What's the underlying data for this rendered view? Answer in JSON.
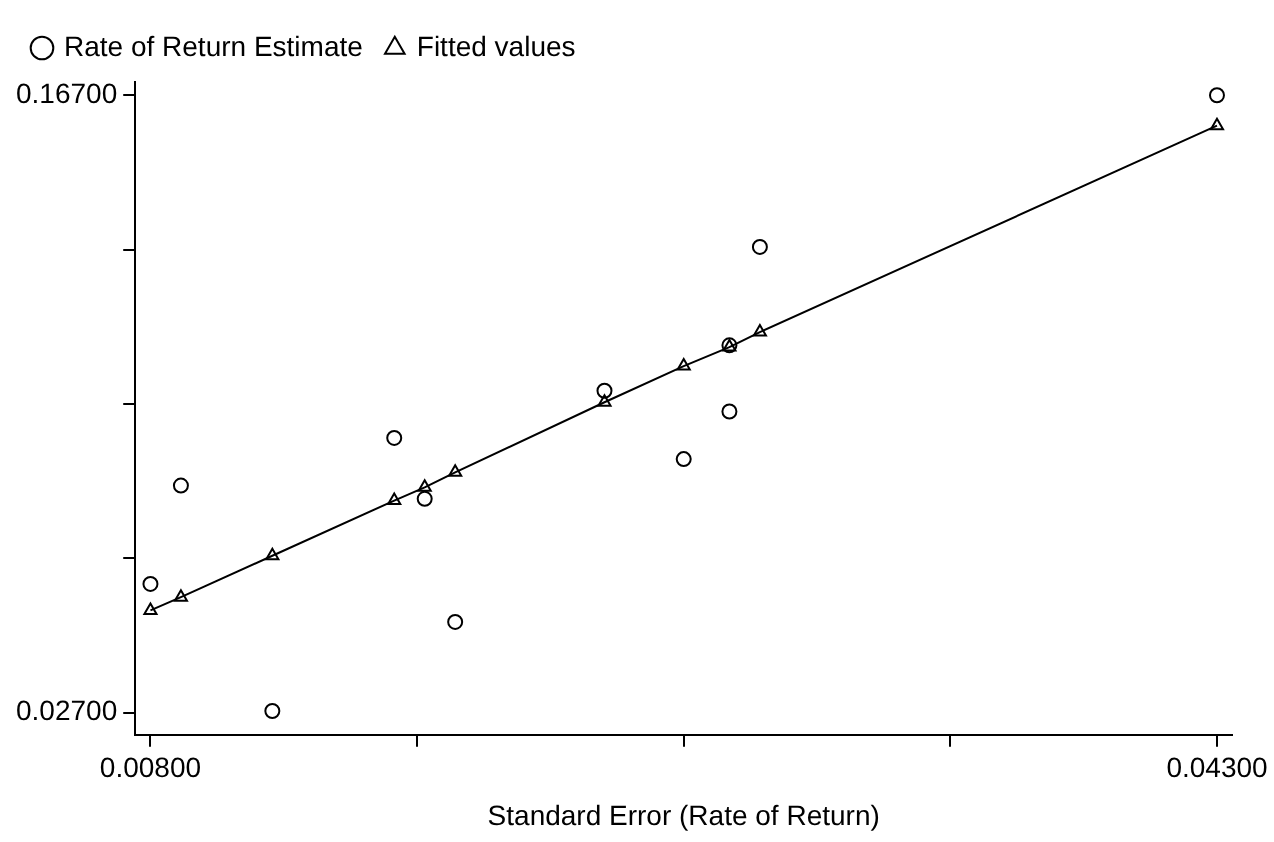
{
  "chart_data": {
    "type": "scatter",
    "xlabel": "Standard Error (Rate of Return)",
    "xlim": [
      0.0075,
      0.0435
    ],
    "ylim": [
      0.022,
      0.17
    ],
    "xticks": [
      {
        "value": 0.008,
        "label": "0.00800"
      },
      {
        "value": 0.01675,
        "label": null
      },
      {
        "value": 0.0255,
        "label": null
      },
      {
        "value": 0.03425,
        "label": null
      },
      {
        "value": 0.043,
        "label": "0.04300"
      }
    ],
    "yticks": [
      {
        "value": 0.027,
        "label": "0.02700"
      },
      {
        "value": 0.062,
        "label": null
      },
      {
        "value": 0.097,
        "label": null
      },
      {
        "value": 0.132,
        "label": null
      },
      {
        "value": 0.167,
        "label": "0.16700"
      }
    ],
    "grid": false,
    "legend": "top",
    "series": [
      {
        "name": "Rate of Return Estimate",
        "type": "scatter",
        "marker": "circle",
        "color": "#000000",
        "x": [
          0.008,
          0.009,
          0.012,
          0.016,
          0.017,
          0.018,
          0.0229,
          0.0255,
          0.027,
          0.027,
          0.028,
          0.043
        ],
        "values": [
          0.0562,
          0.0785,
          0.0274,
          0.0893,
          0.0755,
          0.0476,
          0.1,
          0.0845,
          0.1103,
          0.0953,
          0.1326,
          0.167
        ]
      },
      {
        "name": "Fitted values",
        "type": "line",
        "marker": "triangle",
        "color": "#000000",
        "x": [
          0.008,
          0.009,
          0.012,
          0.016,
          0.017,
          0.018,
          0.0229,
          0.0255,
          0.027,
          0.028,
          0.043
        ],
        "values": [
          0.0502,
          0.0532,
          0.0626,
          0.0751,
          0.0781,
          0.0815,
          0.0974,
          0.1056,
          0.1099,
          0.1133,
          0.1601
        ]
      }
    ]
  }
}
